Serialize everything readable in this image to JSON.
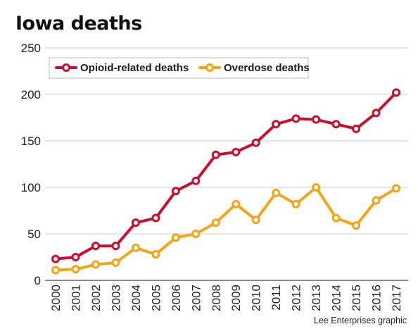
{
  "chart_data": {
    "type": "line",
    "title": "Iowa deaths",
    "xlabel": "",
    "ylabel": "",
    "x": [
      "2000",
      "2001",
      "2002",
      "2003",
      "2004",
      "2005",
      "2006",
      "2007",
      "2008",
      "2009",
      "2010",
      "2011",
      "2012",
      "2013",
      "2014",
      "2015",
      "2016",
      "2017"
    ],
    "ylim": [
      0,
      250
    ],
    "yticks": [
      0,
      50,
      100,
      150,
      200,
      250
    ],
    "grid": true,
    "legend_position": "top-left",
    "series": [
      {
        "name": "Opioid-related deaths",
        "color": "#c8102e",
        "values": [
          23,
          25,
          37,
          37,
          62,
          67,
          96,
          107,
          135,
          138,
          148,
          168,
          174,
          173,
          168,
          163,
          180,
          202
        ]
      },
      {
        "name": "Overdose deaths",
        "color": "#f2a516",
        "values": [
          11,
          12,
          17,
          19,
          35,
          28,
          46,
          50,
          62,
          82,
          65,
          94,
          82,
          100,
          67,
          59,
          86,
          99
        ]
      }
    ],
    "source": "Lee Enterprises graphic"
  }
}
